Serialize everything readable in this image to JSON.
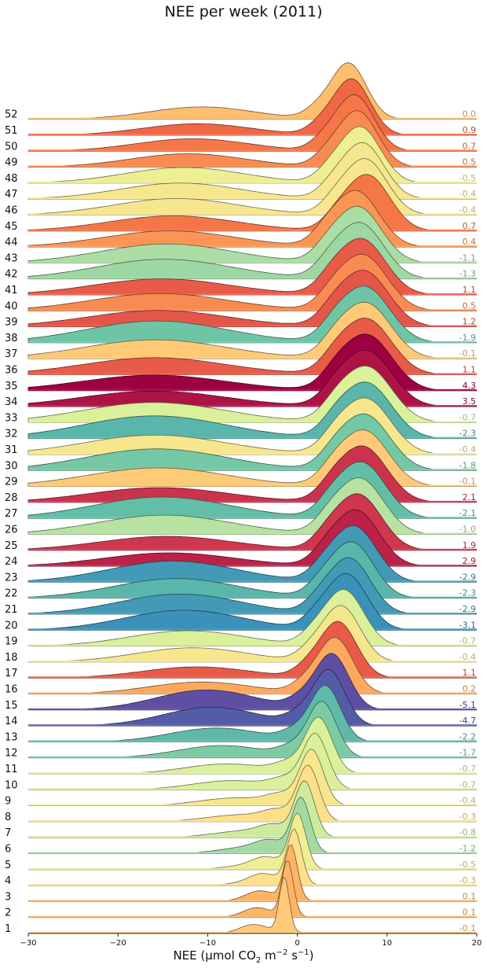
{
  "chart_data": {
    "type": "ridgeline",
    "title": "NEE per week (2011)",
    "xlabel": {
      "prefix": "NEE (µmol CO",
      "sub": "2",
      "mid": " m",
      "sup1": "−2",
      "mid2": " s",
      "sup2": "−1",
      "suffix": ")"
    },
    "xlim": [
      -30,
      20
    ],
    "xticks": [
      "−30",
      "−20",
      "−10",
      "0",
      "10",
      "20"
    ],
    "xtick_values": [
      -30,
      -20,
      -10,
      0,
      10,
      20
    ],
    "grid": false,
    "colormap": "Spectral",
    "weeks": [
      {
        "week": 52,
        "label": "52",
        "mean": "0.0"
      },
      {
        "week": 51,
        "label": "51",
        "mean": "0.9"
      },
      {
        "week": 50,
        "label": "50",
        "mean": "0.7"
      },
      {
        "week": 49,
        "label": "49",
        "mean": "0.5"
      },
      {
        "week": 48,
        "label": "48",
        "mean": "-0.5"
      },
      {
        "week": 47,
        "label": "47",
        "mean": "-0.4"
      },
      {
        "week": 46,
        "label": "46",
        "mean": "-0.4"
      },
      {
        "week": 45,
        "label": "45",
        "mean": "0.7"
      },
      {
        "week": 44,
        "label": "44",
        "mean": "0.4"
      },
      {
        "week": 43,
        "label": "43",
        "mean": "-1.1"
      },
      {
        "week": 42,
        "label": "42",
        "mean": "-1.3"
      },
      {
        "week": 41,
        "label": "41",
        "mean": "1.1"
      },
      {
        "week": 40,
        "label": "40",
        "mean": "0.5"
      },
      {
        "week": 39,
        "label": "39",
        "mean": "1.2"
      },
      {
        "week": 38,
        "label": "38",
        "mean": "-1.9"
      },
      {
        "week": 37,
        "label": "37",
        "mean": "-0.1"
      },
      {
        "week": 36,
        "label": "36",
        "mean": "1.1"
      },
      {
        "week": 35,
        "label": "35",
        "mean": "4.3"
      },
      {
        "week": 34,
        "label": "34",
        "mean": "3.5"
      },
      {
        "week": 33,
        "label": "33",
        "mean": "-0.7"
      },
      {
        "week": 32,
        "label": "32",
        "mean": "-2.3"
      },
      {
        "week": 31,
        "label": "31",
        "mean": "-0.4"
      },
      {
        "week": 30,
        "label": "30",
        "mean": "-1.8"
      },
      {
        "week": 29,
        "label": "29",
        "mean": "-0.1"
      },
      {
        "week": 28,
        "label": "28",
        "mean": "2.1"
      },
      {
        "week": 27,
        "label": "27",
        "mean": "-2.1"
      },
      {
        "week": 26,
        "label": "26",
        "mean": "-1.0"
      },
      {
        "week": 25,
        "label": "25",
        "mean": "1.9"
      },
      {
        "week": 24,
        "label": "24",
        "mean": "2.9"
      },
      {
        "week": 23,
        "label": "23",
        "mean": "-2.9"
      },
      {
        "week": 22,
        "label": "22",
        "mean": "-2.3"
      },
      {
        "week": 21,
        "label": "21",
        "mean": "-2.9"
      },
      {
        "week": 20,
        "label": "20",
        "mean": "-3.1"
      },
      {
        "week": 19,
        "label": "19",
        "mean": "-0.7"
      },
      {
        "week": 18,
        "label": "18",
        "mean": "-0.4"
      },
      {
        "week": 17,
        "label": "17",
        "mean": "1.1"
      },
      {
        "week": 16,
        "label": "16",
        "mean": "0.2"
      },
      {
        "week": 15,
        "label": "15",
        "mean": "-5.1"
      },
      {
        "week": 14,
        "label": "14",
        "mean": "-4.7"
      },
      {
        "week": 13,
        "label": "13",
        "mean": "-2.2"
      },
      {
        "week": 12,
        "label": "12",
        "mean": "-1.7"
      },
      {
        "week": 11,
        "label": "11",
        "mean": "-0.7"
      },
      {
        "week": 10,
        "label": "10",
        "mean": "-0.7"
      },
      {
        "week": 9,
        "label": "9",
        "mean": "-0.4"
      },
      {
        "week": 8,
        "label": "8",
        "mean": "-0.3"
      },
      {
        "week": 7,
        "label": "7",
        "mean": "-0.8"
      },
      {
        "week": 6,
        "label": "6",
        "mean": "-1.2"
      },
      {
        "week": 5,
        "label": "5",
        "mean": "-0.5"
      },
      {
        "week": 4,
        "label": "4",
        "mean": "-0.3"
      },
      {
        "week": 3,
        "label": "3",
        "mean": "0.1"
      },
      {
        "week": 2,
        "label": "2",
        "mean": "0.1"
      },
      {
        "week": 1,
        "label": "1",
        "mean": "-0.1"
      }
    ]
  }
}
